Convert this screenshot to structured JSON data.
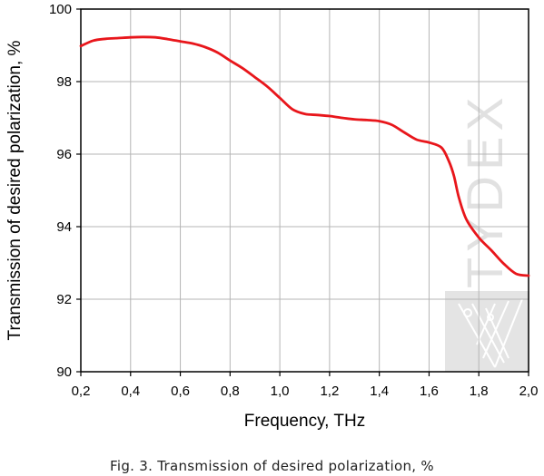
{
  "chart_data": {
    "type": "line",
    "xlabel": "Frequency, THz",
    "ylabel": "Transmission of desired polarization, %",
    "xlim": [
      0.2,
      2.0
    ],
    "ylim": [
      90,
      100
    ],
    "xticks": [
      "0,2",
      "0,4",
      "0,6",
      "0,8",
      "1,0",
      "1,2",
      "1,4",
      "1,6",
      "1,8",
      "2,0"
    ],
    "yticks": [
      "90",
      "92",
      "94",
      "96",
      "98",
      "100"
    ],
    "grid": true,
    "series": [
      {
        "color": "#e8161b",
        "x": [
          0.2,
          0.25,
          0.3,
          0.35,
          0.4,
          0.45,
          0.5,
          0.55,
          0.6,
          0.65,
          0.7,
          0.75,
          0.8,
          0.85,
          0.9,
          0.95,
          1.0,
          1.05,
          1.1,
          1.15,
          1.2,
          1.25,
          1.3,
          1.35,
          1.4,
          1.45,
          1.5,
          1.55,
          1.6,
          1.65,
          1.68,
          1.7,
          1.72,
          1.75,
          1.8,
          1.85,
          1.9,
          1.95,
          2.0
        ],
        "y": [
          98.98,
          99.13,
          99.18,
          99.2,
          99.22,
          99.23,
          99.22,
          99.17,
          99.11,
          99.05,
          98.95,
          98.8,
          98.58,
          98.37,
          98.12,
          97.86,
          97.55,
          97.24,
          97.11,
          97.08,
          97.05,
          97.0,
          96.96,
          96.94,
          96.91,
          96.81,
          96.6,
          96.4,
          96.32,
          96.18,
          95.8,
          95.4,
          94.8,
          94.2,
          93.7,
          93.35,
          92.98,
          92.7,
          92.65
        ]
      }
    ]
  },
  "watermark": "TYDEX",
  "caption": "Fig. 3. Transmission of desired polarization, %"
}
